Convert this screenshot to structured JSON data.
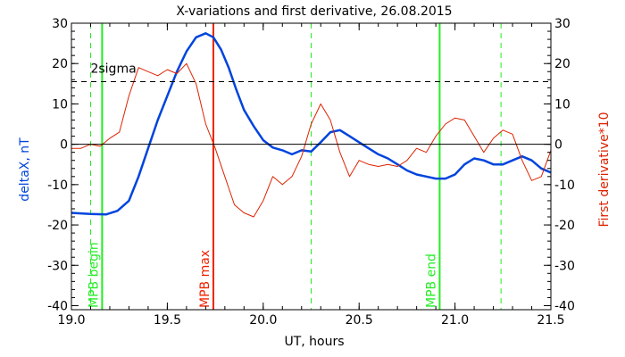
{
  "chart_data": {
    "type": "line",
    "title": "X-variations and first derivative, 26.08.2015",
    "xlabel": "UT, hours",
    "ylabel_left": "deltaX, nT",
    "ylabel_right": "First derivative*10",
    "xlim": [
      19.0,
      21.5
    ],
    "ylim_left": [
      -41,
      30
    ],
    "ylim_right": [
      -41,
      30
    ],
    "x_ticks": [
      "19.0",
      "19.5",
      "20.0",
      "20.5",
      "21.0",
      "21.5"
    ],
    "y_ticks": [
      "-40",
      "-30",
      "-20",
      "-10",
      "0",
      "10",
      "20",
      "30"
    ],
    "grid": false,
    "colors": {
      "deltaX": "#0044dd",
      "derivative": "#dd2200",
      "mpb_lines": "#22ee22",
      "mpb_max": "#ee2200",
      "threshold": "#000000"
    },
    "series": [
      {
        "axis": "left",
        "x": [
          19.0,
          19.1,
          19.18,
          19.24,
          19.3,
          19.35,
          19.4,
          19.45,
          19.5,
          19.55,
          19.6,
          19.65,
          19.7,
          19.74,
          19.78,
          19.82,
          19.86,
          19.9,
          19.95,
          20.0,
          20.05,
          20.1,
          20.15,
          20.2,
          20.25,
          20.3,
          20.35,
          20.4,
          20.45,
          20.5,
          20.55,
          20.6,
          20.65,
          20.7,
          20.75,
          20.8,
          20.85,
          20.9,
          20.95,
          21.0,
          21.05,
          21.1,
          21.15,
          21.2,
          21.25,
          21.3,
          21.35,
          21.4,
          21.45,
          21.5
        ],
        "y": [
          -17.0,
          -17.3,
          -17.4,
          -16.5,
          -14.0,
          -8.0,
          -1.0,
          6.0,
          12.0,
          18.0,
          23.0,
          26.5,
          27.5,
          26.5,
          23.5,
          19.0,
          13.5,
          8.5,
          4.5,
          1.0,
          -0.8,
          -1.5,
          -2.5,
          -1.5,
          -1.8,
          0.5,
          3.0,
          3.5,
          2.0,
          0.5,
          -1.0,
          -2.5,
          -3.5,
          -5.0,
          -6.5,
          -7.5,
          -8.0,
          -8.5,
          -8.5,
          -7.5,
          -5.0,
          -3.5,
          -4.0,
          -5.0,
          -5.0,
          -4.0,
          -3.0,
          -4.0,
          -6.0,
          -7.0
        ]
      },
      {
        "axis": "right",
        "x": [
          19.0,
          19.05,
          19.1,
          19.15,
          19.2,
          19.25,
          19.3,
          19.35,
          19.4,
          19.45,
          19.5,
          19.55,
          19.6,
          19.65,
          19.7,
          19.75,
          19.8,
          19.85,
          19.9,
          19.95,
          20.0,
          20.05,
          20.1,
          20.15,
          20.2,
          20.25,
          20.3,
          20.35,
          20.4,
          20.45,
          20.5,
          20.55,
          20.6,
          20.65,
          20.7,
          20.75,
          20.8,
          20.85,
          20.9,
          20.95,
          21.0,
          21.05,
          21.1,
          21.15,
          21.2,
          21.25,
          21.3,
          21.35,
          21.4,
          21.45,
          21.5
        ],
        "y": [
          -1.0,
          -1.0,
          0.0,
          -0.5,
          1.5,
          3.0,
          12.0,
          19.0,
          18.0,
          17.0,
          18.5,
          17.5,
          20.0,
          15.0,
          5.0,
          -1.0,
          -8.0,
          -15.0,
          -17.0,
          -18.0,
          -14.0,
          -8.0,
          -10.0,
          -8.0,
          -3.0,
          5.0,
          10.0,
          6.0,
          -2.0,
          -8.0,
          -4.0,
          -5.0,
          -5.5,
          -5.0,
          -5.5,
          -4.0,
          -1.0,
          -2.0,
          2.0,
          5.0,
          6.5,
          6.0,
          2.0,
          -2.0,
          1.5,
          3.5,
          2.5,
          -4.0,
          -9.0,
          -8.0,
          -1.5
        ]
      }
    ],
    "threshold": {
      "label": "2sigma",
      "y": 15.5
    },
    "vertical_lines": [
      {
        "x": 19.1,
        "style": "dashed",
        "label": ""
      },
      {
        "x": 19.16,
        "style": "solid",
        "label": "MPB begin"
      },
      {
        "x": 19.74,
        "style": "solid",
        "label": "MPB max"
      },
      {
        "x": 20.25,
        "style": "dashed",
        "label": ""
      },
      {
        "x": 20.92,
        "style": "solid",
        "label": "MPB end"
      },
      {
        "x": 21.24,
        "style": "dashed",
        "label": ""
      }
    ]
  }
}
